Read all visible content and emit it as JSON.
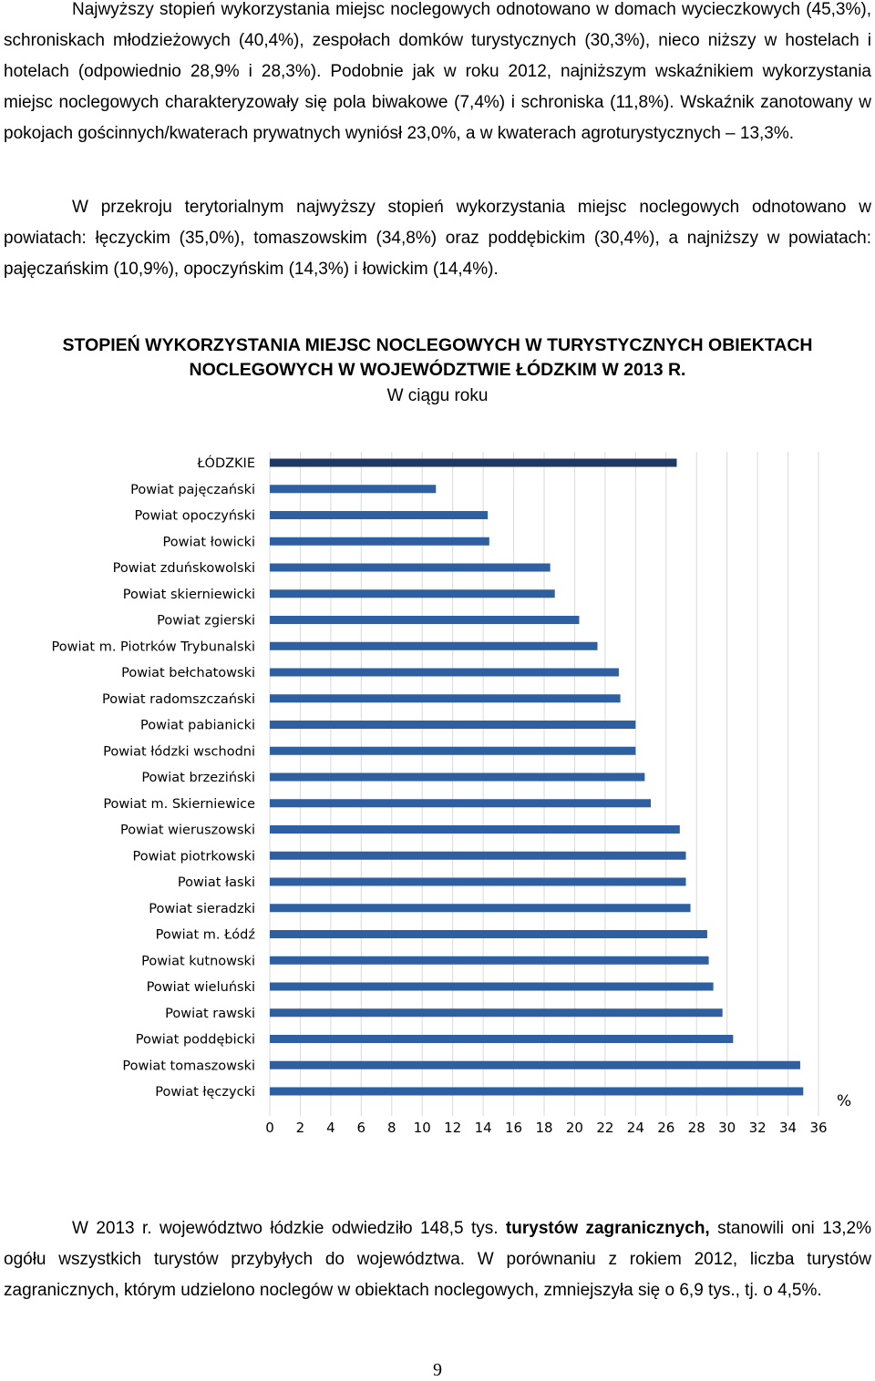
{
  "paragraph1": "Najwyższy stopień wykorzystania miejsc noclegowych odnotowano w domach wycieczkowych (45,3%), schroniskach młodzieżowych (40,4%), zespołach domków turystycznych (30,3%), nieco niższy w hostelach i hotelach (odpowiednio 28,9% i 28,3%). Podobnie jak w roku 2012, najniższym wskaźnikiem wykorzystania miejsc noclegowych charakteryzowały się pola biwakowe (7,4%) i schroniska (11,8%). Wskaźnik zanotowany w pokojach gościnnych/kwaterach prywatnych wyniósł 23,0%, a w kwaterach agroturystycznych – 13,3%.",
  "paragraph2": "W przekroju terytorialnym najwyższy stopień wykorzystania miejsc noclegowych odnotowano w powiatach: łęczyckim (35,0%), tomaszowskim (34,8%) oraz poddębickim (30,4%), a najniższy w powiatach: pajęczańskim (10,9%), opoczyńskim (14,3%) i łowickim (14,4%).",
  "chart_title_line1": "STOPIEŃ WYKORZYSTANIA MIEJSC NOCLEGOWYCH W TURYSTYCZNYCH OBIEKTACH",
  "chart_title_line2": "NOCLEGOWYCH W WOJEWÓDZTWIE ŁÓDZKIM W 2013 R.",
  "chart_subtitle": "W ciągu roku",
  "chart_data": {
    "type": "bar",
    "orientation": "horizontal",
    "title": "STOPIEŃ WYKORZYSTANIA MIEJSC NOCLEGOWYCH W TURYSTYCZNYCH OBIEKTACH NOCLEGOWYCH W WOJEWÓDZTWIE ŁÓDZKIM W 2013 R.",
    "subtitle": "W ciągu roku",
    "unit": "%",
    "xlim": [
      0,
      36
    ],
    "xticks": [
      0,
      2,
      4,
      6,
      8,
      10,
      12,
      14,
      16,
      18,
      20,
      22,
      24,
      26,
      28,
      30,
      32,
      34,
      36
    ],
    "grid": true,
    "colors": {
      "region": "#1f3864",
      "district": "#2e5fa0"
    },
    "categories": [
      "ŁÓDZKIE",
      "Powiat pajęczański",
      "Powiat opoczyński",
      "Powiat łowicki",
      "Powiat zduńskowolski",
      "Powiat skierniewicki",
      "Powiat zgierski",
      "Powiat m. Piotrków Trybunalski",
      "Powiat bełchatowski",
      "Powiat radomszczański",
      "Powiat pabianicki",
      "Powiat łódzki wschodni",
      "Powiat brzeziński",
      "Powiat m. Skierniewice",
      "Powiat wieruszowski",
      "Powiat piotrkowski",
      "Powiat łaski",
      "Powiat sieradzki",
      "Powiat m. Łódź",
      "Powiat kutnowski",
      "Powiat wieluński",
      "Powiat rawski",
      "Powiat poddębicki",
      "Powiat tomaszowski",
      "Powiat łęczycki"
    ],
    "values": [
      26.7,
      10.9,
      14.3,
      14.4,
      18.4,
      18.7,
      20.3,
      21.5,
      22.9,
      23.0,
      24.0,
      24.0,
      24.6,
      25.0,
      26.9,
      27.3,
      27.3,
      27.6,
      28.7,
      28.8,
      29.1,
      29.7,
      30.4,
      34.8,
      35.0
    ]
  },
  "paragraph3_part1": "W 2013 r. województwo łódzkie odwiedziło 148,5 tys. ",
  "paragraph3_bold": "turystów zagranicznych,",
  "paragraph3_part2": " stanowili oni 13,2% ogółu wszystkich turystów przybyłych do województwa. W porównaniu z rokiem 2012, liczba turystów zagranicznych, którym udzielono noclegów w obiektach noclegowych, zmniejszyła się o 6,9 tys., tj. o 4,5%.",
  "page_number": "9"
}
